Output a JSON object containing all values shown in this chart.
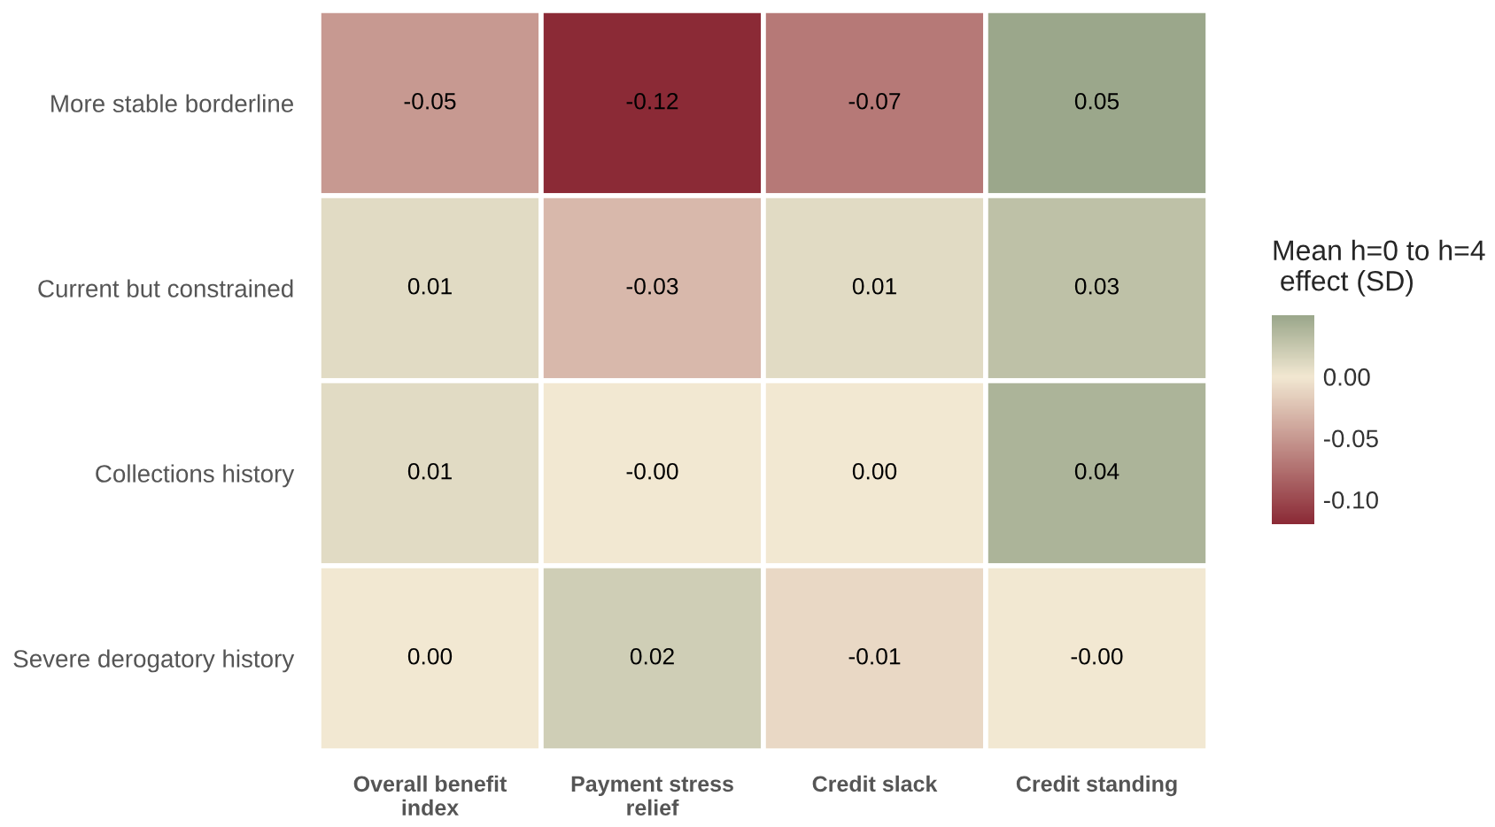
{
  "chart_data": {
    "type": "heatmap",
    "categories": [
      "Overall benefit\nindex",
      "Payment stress\nrelief",
      "Credit slack",
      "Credit standing"
    ],
    "y_categories": [
      "More stable borderline",
      "Current but constrained",
      "Collections history",
      "Severe derogatory history"
    ],
    "cells": [
      [
        -0.05,
        -0.12,
        -0.07,
        0.05
      ],
      [
        0.01,
        -0.03,
        0.01,
        0.03
      ],
      [
        0.01,
        -0.0,
        0.0,
        0.04
      ],
      [
        0.0,
        0.02,
        -0.01,
        -0.0
      ]
    ],
    "cell_labels": [
      [
        "-0.05",
        "-0.12",
        "-0.07",
        "0.05"
      ],
      [
        "0.01",
        "-0.03",
        "0.01",
        "0.03"
      ],
      [
        "0.01",
        "-0.00",
        "0.00",
        "0.04"
      ],
      [
        "0.00",
        "0.02",
        "-0.01",
        "-0.00"
      ]
    ],
    "colors": [
      "#8b2a36",
      "#f2e8d2",
      "#9ba78b"
    ],
    "clim": [
      -0.12,
      0.05
    ],
    "cticks": [
      {
        "value": -0.1,
        "label": "-0.10"
      },
      {
        "value": -0.05,
        "label": "-0.05"
      },
      {
        "value": 0,
        "label": "0.00"
      }
    ],
    "clabel": "Mean h=0 to h=4\n effect (SD)"
  }
}
